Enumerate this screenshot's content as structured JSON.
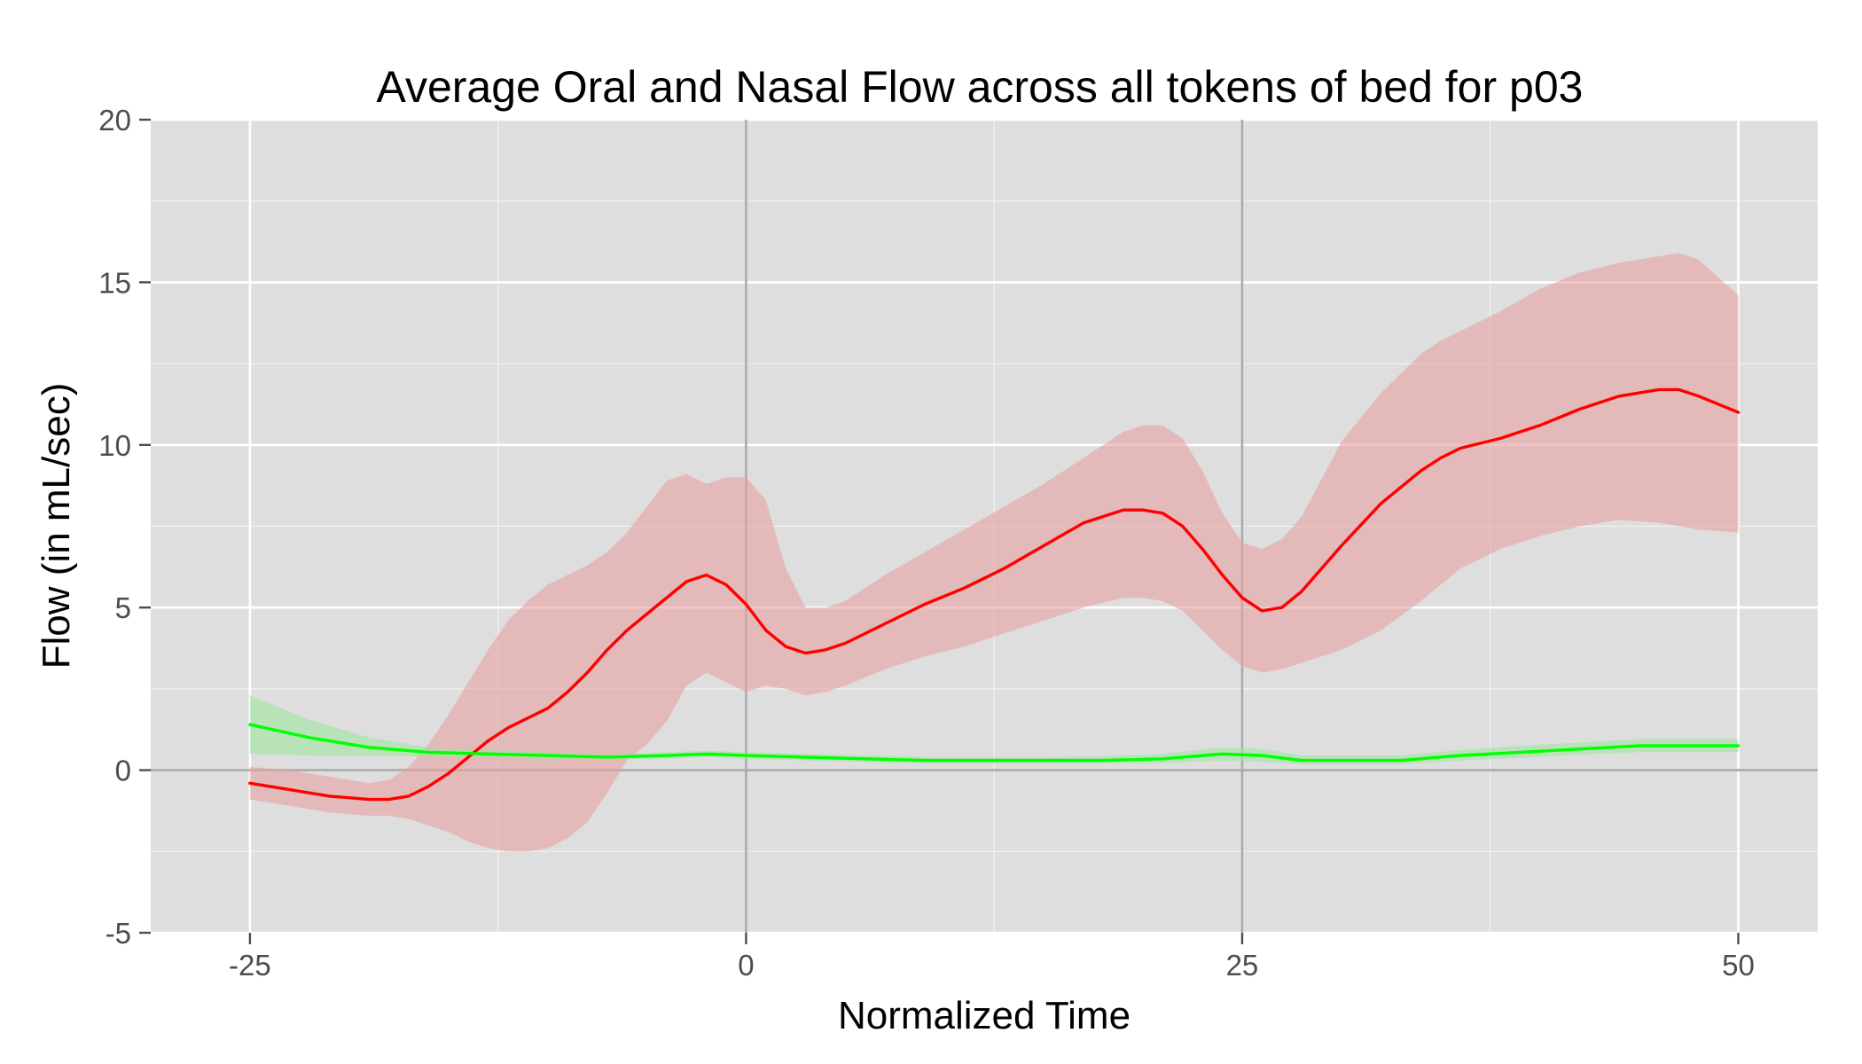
{
  "chart_data": {
    "type": "line",
    "title": "Average Oral and Nasal Flow across all tokens of bed for p03",
    "xlabel": "Normalized Time",
    "ylabel": "Flow (in mL/sec)",
    "xlim": [
      -30,
      54
    ],
    "ylim": [
      -5,
      20
    ],
    "xticks": [
      -25,
      0,
      25,
      50
    ],
    "yticks": [
      -5,
      0,
      5,
      10,
      15,
      20
    ],
    "x_minor_gridlines": [
      -12.5,
      12.5,
      37.5
    ],
    "y_minor_gridlines": [
      -2.5,
      2.5,
      7.5,
      12.5,
      17.5
    ],
    "reference_lines": {
      "vertical": [
        0,
        25
      ],
      "horizontal": [
        0
      ]
    },
    "grid": true,
    "background": "#dedede",
    "series": [
      {
        "color": "#ff0000",
        "ribbon_color": "#e8a0a0",
        "x": [
          -25,
          -23,
          -21,
          -19,
          -18,
          -17,
          -16,
          -15,
          -14,
          -13,
          -12,
          -11,
          -10,
          -9,
          -8,
          -7,
          -6,
          -5,
          -4,
          -3,
          -2,
          -1,
          0,
          1,
          2,
          3,
          4,
          5,
          7,
          9,
          11,
          13,
          15,
          17,
          19,
          20,
          21,
          22,
          23,
          24,
          25,
          26,
          27,
          28,
          30,
          32,
          34,
          35,
          36,
          38,
          40,
          42,
          44,
          46,
          47,
          48,
          50
        ],
        "y": [
          -0.4,
          -0.6,
          -0.8,
          -0.9,
          -0.9,
          -0.8,
          -0.5,
          -0.1,
          0.4,
          0.9,
          1.3,
          1.6,
          1.9,
          2.4,
          3.0,
          3.7,
          4.3,
          4.8,
          5.3,
          5.8,
          6.0,
          5.7,
          5.1,
          4.3,
          3.8,
          3.6,
          3.7,
          3.9,
          4.5,
          5.1,
          5.6,
          6.2,
          6.9,
          7.6,
          8.0,
          8.0,
          7.9,
          7.5,
          6.8,
          6.0,
          5.3,
          4.9,
          5.0,
          5.5,
          6.9,
          8.2,
          9.2,
          9.6,
          9.9,
          10.2,
          10.6,
          11.1,
          11.5,
          11.7,
          11.7,
          11.5,
          11.0
        ],
        "lower": [
          -0.9,
          -1.1,
          -1.3,
          -1.4,
          -1.4,
          -1.5,
          -1.7,
          -1.9,
          -2.2,
          -2.4,
          -2.5,
          -2.5,
          -2.4,
          -2.1,
          -1.6,
          -0.7,
          0.3,
          0.8,
          1.5,
          2.6,
          3.0,
          2.7,
          2.4,
          2.6,
          2.5,
          2.3,
          2.4,
          2.6,
          3.1,
          3.5,
          3.8,
          4.2,
          4.6,
          5.0,
          5.3,
          5.3,
          5.2,
          4.9,
          4.3,
          3.7,
          3.2,
          3.0,
          3.1,
          3.3,
          3.7,
          4.3,
          5.2,
          5.7,
          6.2,
          6.8,
          7.2,
          7.5,
          7.7,
          7.6,
          7.5,
          7.4,
          7.3
        ],
        "upper": [
          0.1,
          0.0,
          -0.2,
          -0.4,
          -0.3,
          0.1,
          0.8,
          1.7,
          2.7,
          3.7,
          4.6,
          5.2,
          5.7,
          6.0,
          6.3,
          6.7,
          7.3,
          8.1,
          8.9,
          9.1,
          8.8,
          9.0,
          9.0,
          8.3,
          6.2,
          5.0,
          5.0,
          5.2,
          6.0,
          6.7,
          7.4,
          8.1,
          8.8,
          9.6,
          10.4,
          10.6,
          10.6,
          10.2,
          9.2,
          7.9,
          7.0,
          6.8,
          7.1,
          7.8,
          10.1,
          11.6,
          12.8,
          13.2,
          13.5,
          14.1,
          14.8,
          15.3,
          15.6,
          15.8,
          15.9,
          15.7,
          14.6
        ]
      },
      {
        "color": "#00ff00",
        "ribbon_color": "#9fe59f",
        "x": [
          -25,
          -22,
          -19,
          -16,
          -13,
          -10,
          -7,
          -4,
          -2,
          0,
          3,
          6,
          9,
          12,
          15,
          18,
          21,
          24,
          26,
          28,
          30,
          33,
          36,
          39,
          42,
          45,
          48,
          50
        ],
        "y": [
          1.4,
          1.0,
          0.7,
          0.55,
          0.5,
          0.45,
          0.4,
          0.45,
          0.5,
          0.45,
          0.4,
          0.35,
          0.3,
          0.3,
          0.3,
          0.3,
          0.35,
          0.5,
          0.45,
          0.3,
          0.3,
          0.3,
          0.45,
          0.55,
          0.65,
          0.75,
          0.75,
          0.75
        ],
        "lower": [
          0.5,
          0.45,
          0.45,
          0.4,
          0.38,
          0.35,
          0.33,
          0.35,
          0.4,
          0.35,
          0.3,
          0.25,
          0.2,
          0.2,
          0.2,
          0.2,
          0.22,
          0.3,
          0.25,
          0.18,
          0.18,
          0.18,
          0.3,
          0.38,
          0.48,
          0.55,
          0.55,
          0.55
        ],
        "upper": [
          2.3,
          1.55,
          1.0,
          0.7,
          0.62,
          0.55,
          0.48,
          0.55,
          0.6,
          0.55,
          0.5,
          0.45,
          0.4,
          0.4,
          0.4,
          0.42,
          0.5,
          0.7,
          0.65,
          0.45,
          0.45,
          0.45,
          0.62,
          0.75,
          0.85,
          0.95,
          0.95,
          0.95
        ]
      }
    ]
  }
}
